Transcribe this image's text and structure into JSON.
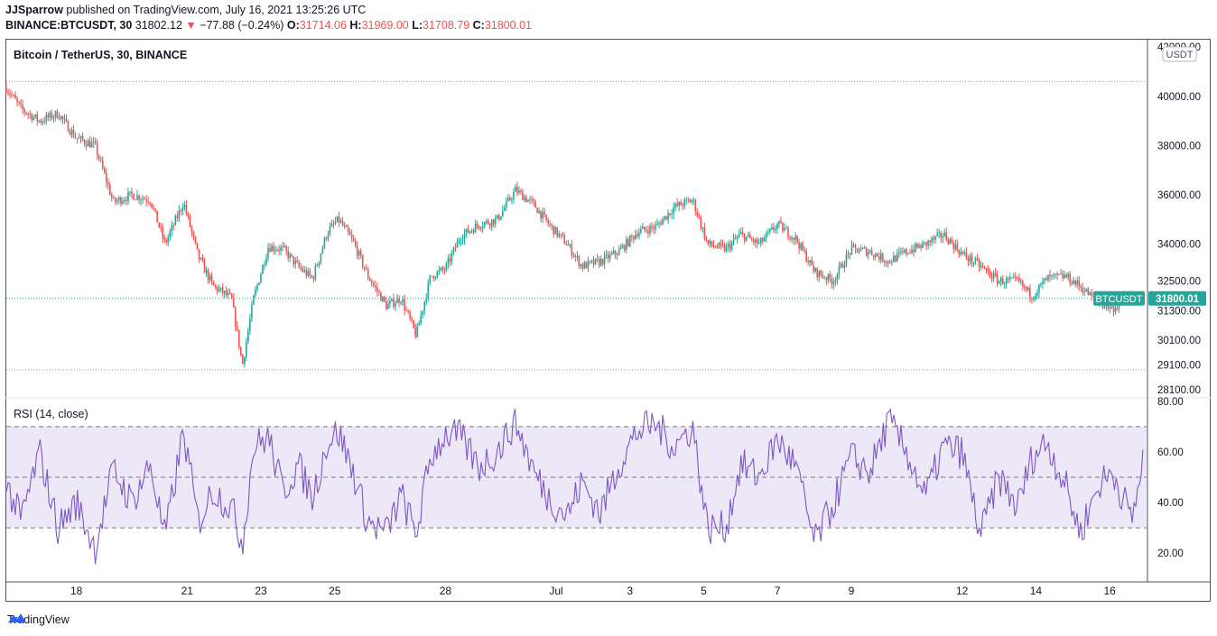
{
  "header": {
    "author": "JJSparrow",
    "published_text": "published on TradingView.com, July 16, 2021 13:25:26 UTC",
    "symbol_line": "BINANCE:BTCUSDT, 30",
    "last": "31802.12",
    "change_arrow": "▼",
    "change": "−77.88 (−0.24%)",
    "o_label": "O:",
    "o_value": "31714.06",
    "h_label": "H:",
    "h_value": "31969.00",
    "l_label": "L:",
    "l_value": "31708.79",
    "c_label": "C:",
    "c_value": "31800.01"
  },
  "chart_data": [
    {
      "type": "candlestick",
      "title": "Bitcoin / TetherUS, 30, BINANCE",
      "currency": "USDT",
      "price_axis_ticks": [
        "42000.00",
        "40000.00",
        "38000.00",
        "36000.00",
        "34000.00",
        "32500.00",
        "31300.00",
        "30100.00",
        "29100.00",
        "28100.00"
      ],
      "price_axis_values": [
        42000,
        40000,
        38000,
        36000,
        34000,
        32500,
        31300,
        30100,
        29100,
        28100
      ],
      "ylim": [
        27800,
        42300
      ],
      "x_axis_ticks": [
        "18",
        "21",
        "23",
        "25",
        "28",
        "Jul",
        "3",
        "5",
        "7",
        "9",
        "12",
        "14",
        "16"
      ],
      "x_axis_days": [
        2,
        5,
        7,
        9,
        12,
        15,
        17,
        19,
        21,
        23,
        26,
        28,
        30
      ],
      "x_range_days": [
        0.1,
        31.0
      ],
      "high_line": 40600,
      "low_line": 28900,
      "last_price_label": {
        "symbol": "BTCUSDT",
        "price": "31800.01",
        "value": 31800.01
      },
      "colors": {
        "up": "#26a69a",
        "down": "#ef5350"
      },
      "approx_close_path": [
        [
          0.1,
          40350
        ],
        [
          0.5,
          39500
        ],
        [
          1.0,
          39000
        ],
        [
          1.5,
          39300
        ],
        [
          2.0,
          38300
        ],
        [
          2.5,
          38000
        ],
        [
          3.0,
          35700
        ],
        [
          3.5,
          36000
        ],
        [
          4.0,
          35800
        ],
        [
          4.4,
          34000
        ],
        [
          4.9,
          35700
        ],
        [
          5.3,
          33500
        ],
        [
          5.7,
          32300
        ],
        [
          6.2,
          31800
        ],
        [
          6.5,
          29100
        ],
        [
          6.8,
          31800
        ],
        [
          7.2,
          33900
        ],
        [
          7.6,
          33800
        ],
        [
          8.0,
          33100
        ],
        [
          8.4,
          32600
        ],
        [
          8.8,
          34500
        ],
        [
          9.1,
          35000
        ],
        [
          9.5,
          34100
        ],
        [
          9.9,
          32700
        ],
        [
          10.4,
          31500
        ],
        [
          10.8,
          31800
        ],
        [
          11.2,
          30300
        ],
        [
          11.6,
          32700
        ],
        [
          12.0,
          33000
        ],
        [
          12.4,
          34300
        ],
        [
          12.9,
          34800
        ],
        [
          13.4,
          35000
        ],
        [
          13.9,
          36200
        ],
        [
          14.4,
          35600
        ],
        [
          14.8,
          34800
        ],
        [
          15.3,
          34000
        ],
        [
          15.7,
          33100
        ],
        [
          16.2,
          33300
        ],
        [
          16.7,
          33700
        ],
        [
          17.2,
          34500
        ],
        [
          17.7,
          34700
        ],
        [
          18.2,
          35500
        ],
        [
          18.7,
          35800
        ],
        [
          19.1,
          34000
        ],
        [
          19.6,
          33800
        ],
        [
          20.0,
          34400
        ],
        [
          20.5,
          34000
        ],
        [
          21.0,
          34800
        ],
        [
          21.5,
          34200
        ],
        [
          22.0,
          32900
        ],
        [
          22.5,
          32500
        ],
        [
          23.0,
          33800
        ],
        [
          23.5,
          33700
        ],
        [
          24.0,
          33300
        ],
        [
          24.5,
          33700
        ],
        [
          25.0,
          34000
        ],
        [
          25.5,
          34400
        ],
        [
          26.0,
          33600
        ],
        [
          26.5,
          33100
        ],
        [
          27.0,
          32500
        ],
        [
          27.5,
          32500
        ],
        [
          27.9,
          31900
        ],
        [
          28.3,
          32600
        ],
        [
          28.8,
          32700
        ],
        [
          29.2,
          32300
        ],
        [
          29.7,
          31600
        ],
        [
          30.1,
          31400
        ],
        [
          30.6,
          31900
        ]
      ]
    },
    {
      "type": "line",
      "title": "RSI (14, close)",
      "rsi_axis_ticks": [
        "80.00",
        "60.00",
        "40.00",
        "20.00"
      ],
      "rsi_axis_values": [
        80,
        60,
        40,
        20
      ],
      "ylim": [
        9,
        81
      ],
      "band_upper": 70,
      "band_middle": 50,
      "band_lower": 30,
      "colors": {
        "line": "#7e57c2",
        "band": "#ece8f7"
      },
      "approx_path": [
        [
          0.1,
          47
        ],
        [
          0.5,
          33
        ],
        [
          1.0,
          60
        ],
        [
          1.5,
          30
        ],
        [
          2.0,
          40
        ],
        [
          2.5,
          22
        ],
        [
          3.0,
          53
        ],
        [
          3.5,
          40
        ],
        [
          4.0,
          55
        ],
        [
          4.4,
          26
        ],
        [
          4.9,
          68
        ],
        [
          5.3,
          32
        ],
        [
          5.7,
          45
        ],
        [
          6.2,
          38
        ],
        [
          6.5,
          24
        ],
        [
          6.8,
          62
        ],
        [
          7.2,
          66
        ],
        [
          7.6,
          44
        ],
        [
          8.0,
          55
        ],
        [
          8.4,
          42
        ],
        [
          8.8,
          64
        ],
        [
          9.1,
          68
        ],
        [
          9.5,
          52
        ],
        [
          9.9,
          32
        ],
        [
          10.4,
          28
        ],
        [
          10.8,
          43
        ],
        [
          11.2,
          27
        ],
        [
          11.6,
          58
        ],
        [
          12.0,
          67
        ],
        [
          12.4,
          66
        ],
        [
          12.9,
          54
        ],
        [
          13.4,
          60
        ],
        [
          13.9,
          72
        ],
        [
          14.4,
          52
        ],
        [
          14.8,
          42
        ],
        [
          15.3,
          35
        ],
        [
          15.7,
          48
        ],
        [
          16.2,
          36
        ],
        [
          16.7,
          55
        ],
        [
          17.2,
          68
        ],
        [
          17.7,
          71
        ],
        [
          18.2,
          62
        ],
        [
          18.7,
          70
        ],
        [
          19.1,
          30
        ],
        [
          19.6,
          30
        ],
        [
          20.0,
          55
        ],
        [
          20.5,
          50
        ],
        [
          21.0,
          65
        ],
        [
          21.5,
          54
        ],
        [
          22.0,
          24
        ],
        [
          22.5,
          39
        ],
        [
          23.0,
          58
        ],
        [
          23.5,
          52
        ],
        [
          24.0,
          72
        ],
        [
          24.5,
          60
        ],
        [
          25.0,
          42
        ],
        [
          25.5,
          62
        ],
        [
          26.0,
          60
        ],
        [
          26.5,
          27
        ],
        [
          27.0,
          50
        ],
        [
          27.5,
          38
        ],
        [
          27.9,
          58
        ],
        [
          28.3,
          64
        ],
        [
          28.8,
          47
        ],
        [
          29.2,
          28
        ],
        [
          29.7,
          47
        ],
        [
          30.1,
          52
        ],
        [
          30.6,
          33
        ],
        [
          30.9,
          56
        ]
      ]
    }
  ],
  "footer": {
    "brand": "TradingView"
  }
}
